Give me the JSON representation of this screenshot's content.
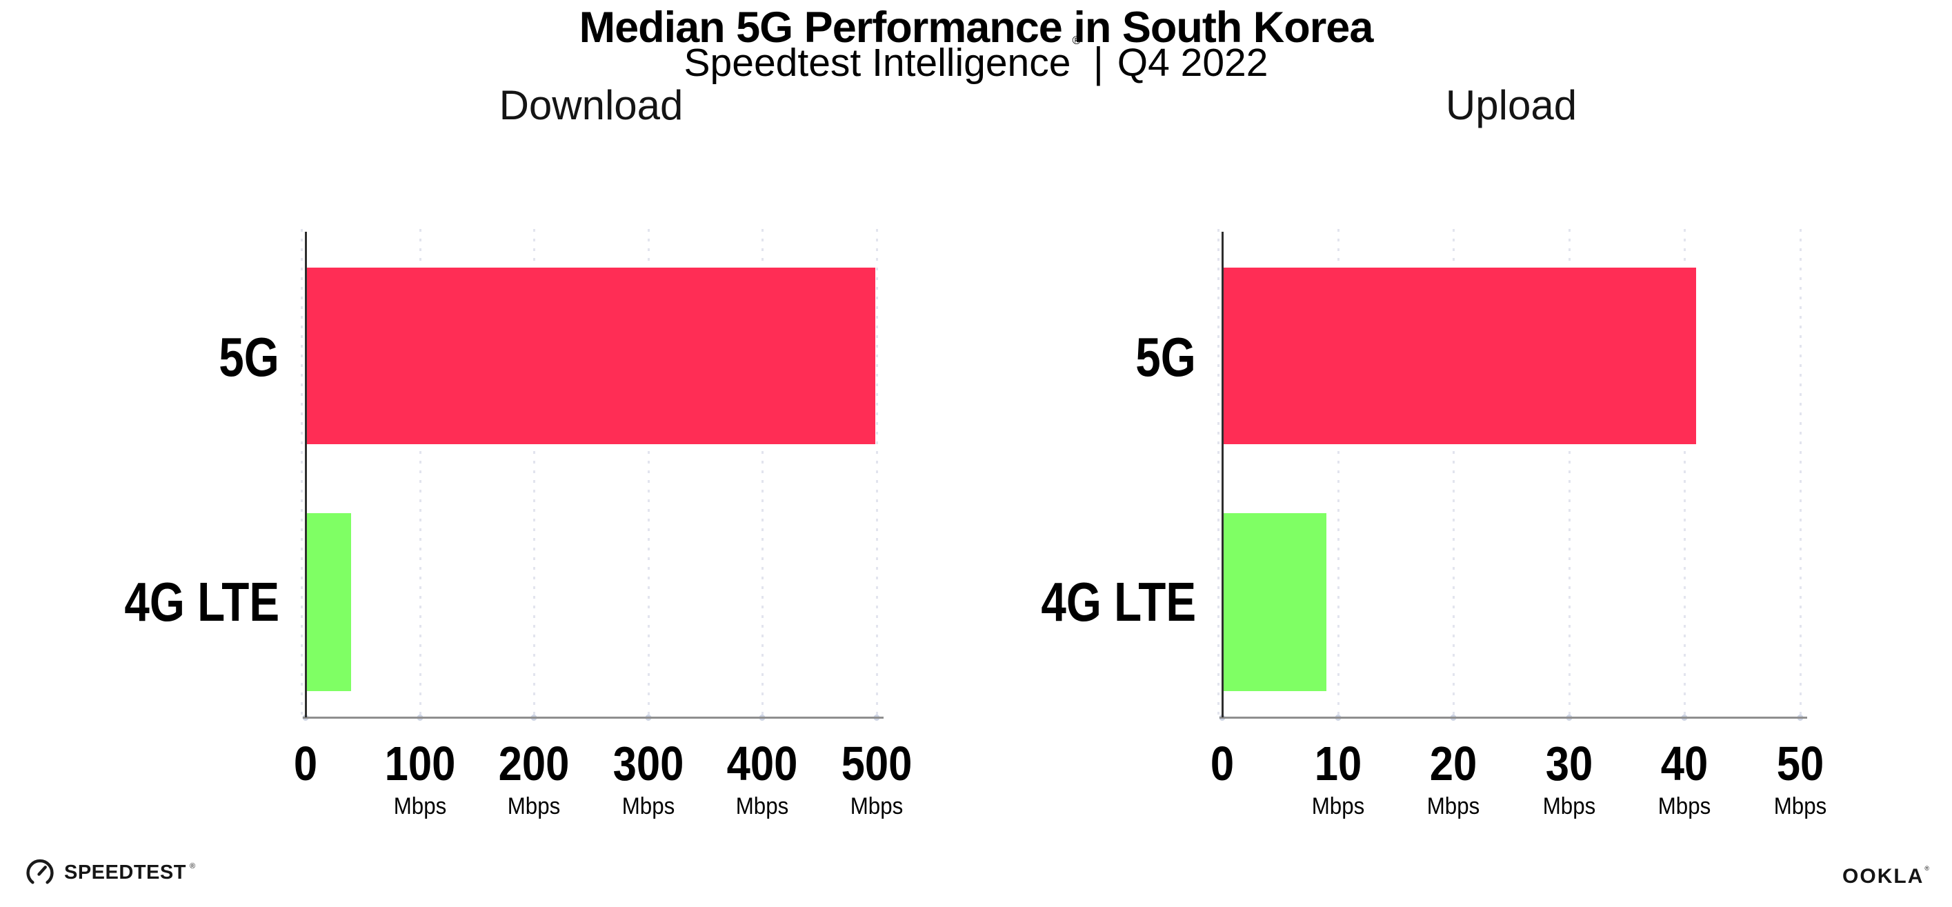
{
  "header": {
    "title": "Median 5G Performance in South Korea",
    "subtitle": {
      "brand": "Speedtest Intelligence",
      "registered_mark": "®",
      "divider": "|",
      "period": "Q4 2022"
    }
  },
  "chart_data": [
    {
      "type": "bar",
      "orientation": "horizontal",
      "title": "Download",
      "categories": [
        "5G",
        "4G LTE"
      ],
      "values": [
        499,
        40
      ],
      "unit": "Mbps",
      "xlim": [
        0,
        500
      ],
      "xticks": [
        0,
        100,
        200,
        300,
        400,
        500
      ],
      "tick_unit_label": "Mbps",
      "grid": "vertical-dotted",
      "legend": "none",
      "bar_colors": [
        "#ff2d55",
        "#7fff64"
      ]
    },
    {
      "type": "bar",
      "orientation": "horizontal",
      "title": "Upload",
      "categories": [
        "5G",
        "4G LTE"
      ],
      "values": [
        41,
        9
      ],
      "unit": "Mbps",
      "xlim": [
        0,
        50
      ],
      "xticks": [
        0,
        10,
        20,
        30,
        40,
        50
      ],
      "tick_unit_label": "Mbps",
      "grid": "vertical-dotted",
      "legend": "none",
      "bar_colors": [
        "#ff2d55",
        "#7fff64"
      ]
    }
  ],
  "footer": {
    "speedtest_logo": {
      "icon": "speedtest-gauge-icon",
      "text": "SPEEDTEST",
      "registered_mark": "®"
    },
    "ookla_logo": {
      "text": "OOKLA",
      "registered_mark": "®"
    }
  },
  "colors": {
    "bar_5g": "#ff2d55",
    "bar_4g": "#7fff64",
    "background": "#ffffff",
    "text": "#000000",
    "axis_line": "#8f8f8f",
    "axis_spine": "#2e2e2e",
    "gridline": "#e2e4ee",
    "tick_dot": "#ccd3e3"
  }
}
